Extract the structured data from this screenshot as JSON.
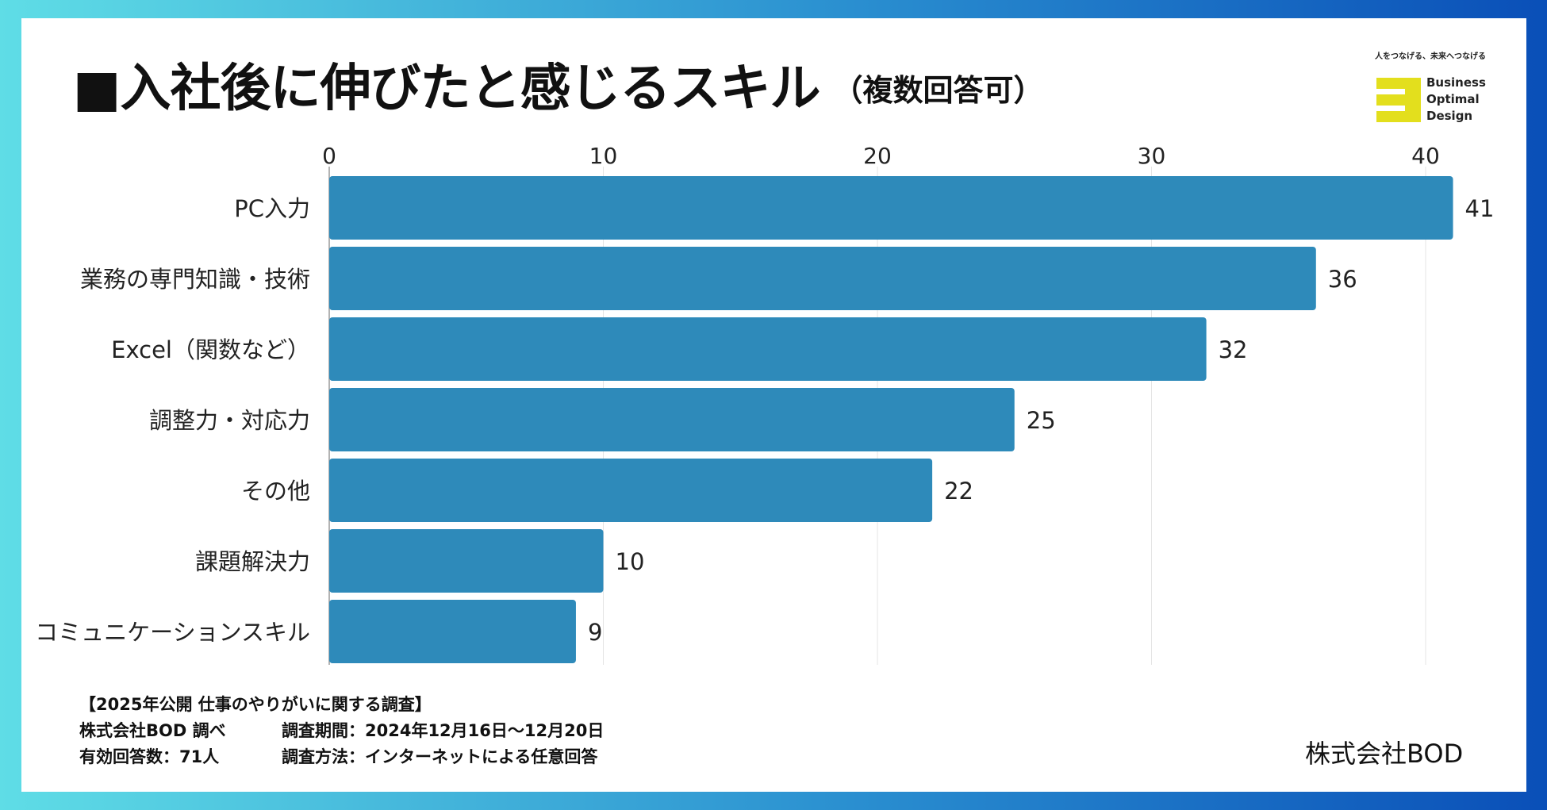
{
  "title": "■入社後に伸びたと感じるスキル",
  "subtitle": "（複数回答可）",
  "logo": {
    "tagline": "人をつなげる、未来へつなげる",
    "line1": "Business",
    "line2": "Optimal",
    "line3": "Design",
    "accent": "#e3df1d"
  },
  "bar_color": "#2e8aba",
  "chart_data": {
    "type": "bar",
    "orientation": "horizontal",
    "title": "■入社後に伸びたと感じるスキル（複数回答可）",
    "categories": [
      "PC入力",
      "業務の専門知識・技術",
      "Excel（関数など）",
      "調整力・対応力",
      "その他",
      "課題解決力",
      "コミュニケーションスキル"
    ],
    "values": [
      41,
      36,
      32,
      25,
      22,
      10,
      9
    ],
    "xlim": [
      0,
      44
    ],
    "xticks": [
      "0",
      "10",
      "20",
      "30",
      "40"
    ],
    "tick_values": [
      0,
      10,
      20,
      30,
      40
    ],
    "grid": true,
    "axis_position": "top"
  },
  "footnotes": {
    "heading": "【2025年公開 仕事のやりがいに関する調査】",
    "surveyor": "株式会社BOD 調べ",
    "period": "調査期間：2024年12月16日〜12月20日",
    "respondents": "有効回答数：71人",
    "method": "調査方法：インターネットによる任意回答"
  },
  "company": "株式会社BOD"
}
